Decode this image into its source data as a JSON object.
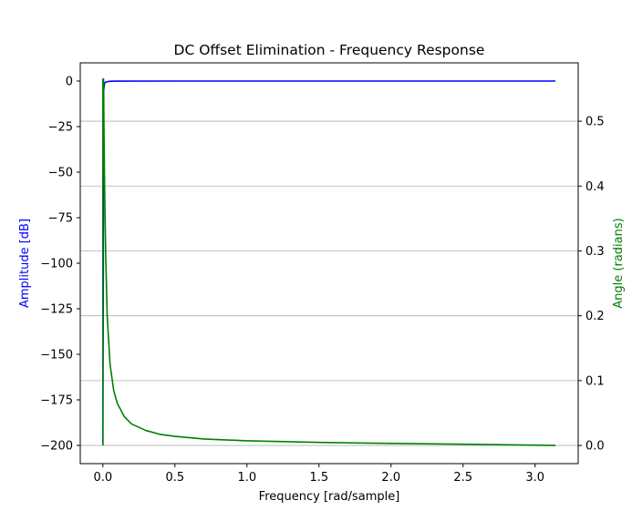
{
  "chart_data": {
    "type": "line",
    "title": "DC Offset Elimination - Frequency Response",
    "xlabel": "Frequency [rad/sample]",
    "ylabel_left": "Amplitude [dB]",
    "ylabel_right": "Angle (radians)",
    "xlim": [
      -0.157,
      3.299
    ],
    "ylim_left": [
      -210,
      10
    ],
    "ylim_right": [
      -0.028,
      0.59
    ],
    "x_ticks": [
      "0.0",
      "0.5",
      "1.0",
      "1.5",
      "2.0",
      "2.5",
      "3.0"
    ],
    "y_left_ticks": [
      "0",
      "−25",
      "−50",
      "−75",
      "−100",
      "−125",
      "−150",
      "−175",
      "−200"
    ],
    "y_right_ticks": [
      "0.0",
      "0.1",
      "0.2",
      "0.3",
      "0.4",
      "0.5"
    ],
    "grid": "horizontal lines at right-axis ticks",
    "colors": {
      "amplitude": "#0000ff",
      "angle": "#008000",
      "label_left": "#0000ff",
      "label_right": "#008000"
    },
    "series": [
      {
        "axis": "left",
        "color": "#0000ff",
        "x": [
          0.0,
          0.006,
          0.012,
          0.02,
          0.05,
          0.1,
          0.5,
          1.0,
          1.5,
          2.0,
          2.5,
          3.1416
        ],
        "values": [
          -200,
          -5,
          -1.2,
          -0.5,
          -0.1,
          -0.02,
          0,
          0,
          0,
          0,
          0,
          0
        ]
      },
      {
        "axis": "right",
        "color": "#008000",
        "x": [
          0.0,
          0.0,
          0.005,
          0.008,
          0.012,
          0.02,
          0.03,
          0.05,
          0.075,
          0.1,
          0.15,
          0.2,
          0.3,
          0.4,
          0.5,
          0.7,
          1.0,
          1.5,
          2.0,
          2.5,
          3.1416
        ],
        "values": [
          0.0,
          0.565,
          0.565,
          0.48,
          0.4,
          0.29,
          0.2,
          0.125,
          0.085,
          0.065,
          0.044,
          0.033,
          0.023,
          0.017,
          0.014,
          0.01,
          0.0072,
          0.0047,
          0.0032,
          0.0019,
          0.0
        ]
      }
    ]
  }
}
